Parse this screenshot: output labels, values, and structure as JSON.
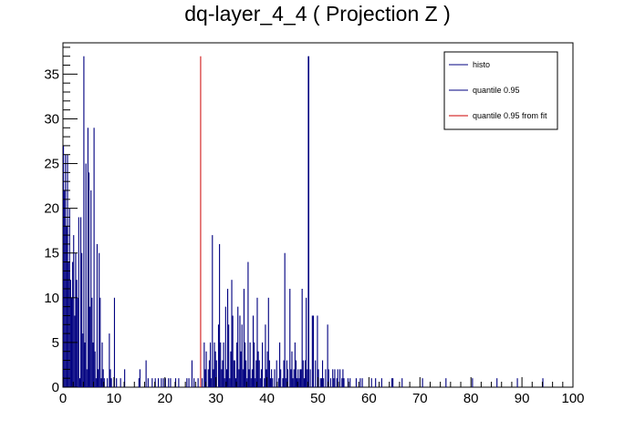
{
  "chart_data": {
    "type": "bar",
    "title": "dq-layer_4_4 ( Projection Z )",
    "xlabel": "",
    "ylabel": "",
    "xlim": [
      0,
      100
    ],
    "ylim": [
      0,
      38.5
    ],
    "bin_width": 0.2,
    "x_ticks": [
      0,
      10,
      20,
      30,
      40,
      50,
      60,
      70,
      80,
      90,
      100
    ],
    "y_ticks": [
      0,
      5,
      10,
      15,
      20,
      25,
      30,
      35
    ],
    "grid": false,
    "legend_position": "top-right",
    "legend": [
      {
        "name": "histo",
        "color": "#000080"
      },
      {
        "name": "quantile 0.95",
        "color": "#000080"
      },
      {
        "name": "quantile 0.95 from fit",
        "color": "#cc0000"
      }
    ],
    "lines": [
      {
        "name": "quantile 0.95",
        "x": 48.1,
        "y": 37,
        "color": "#000080"
      },
      {
        "name": "quantile 0.95 from fit",
        "x": 27.0,
        "y": 37,
        "color": "#cc0000"
      }
    ],
    "series": [
      {
        "name": "histo",
        "color": "#000080",
        "points": [
          [
            0.0,
            27
          ],
          [
            0.2,
            22
          ],
          [
            0.4,
            26
          ],
          [
            0.6,
            18
          ],
          [
            0.8,
            26
          ],
          [
            1.0,
            14
          ],
          [
            1.2,
            20
          ],
          [
            1.4,
            12
          ],
          [
            1.6,
            10
          ],
          [
            1.8,
            14
          ],
          [
            2.0,
            17
          ],
          [
            2.2,
            8
          ],
          [
            2.4,
            15
          ],
          [
            2.6,
            12
          ],
          [
            2.8,
            10
          ],
          [
            3.0,
            19
          ],
          [
            3.2,
            1
          ],
          [
            3.4,
            19
          ],
          [
            3.6,
            15
          ],
          [
            3.8,
            6
          ],
          [
            4.0,
            37
          ],
          [
            4.2,
            5
          ],
          [
            4.4,
            25
          ],
          [
            4.6,
            2
          ],
          [
            4.8,
            29
          ],
          [
            5.0,
            24
          ],
          [
            5.2,
            9
          ],
          [
            5.4,
            22
          ],
          [
            5.6,
            10
          ],
          [
            5.8,
            5
          ],
          [
            6.0,
            29
          ],
          [
            6.2,
            4
          ],
          [
            6.4,
            1
          ],
          [
            6.6,
            16
          ],
          [
            6.8,
            2
          ],
          [
            7.0,
            15
          ],
          [
            7.2,
            10
          ],
          [
            7.4,
            1
          ],
          [
            7.6,
            5
          ],
          [
            7.8,
            2
          ],
          [
            8.0,
            1
          ],
          [
            8.6,
            1
          ],
          [
            9.0,
            6
          ],
          [
            9.2,
            2
          ],
          [
            9.4,
            1
          ],
          [
            10.0,
            10
          ],
          [
            10.4,
            1
          ],
          [
            11.2,
            1
          ],
          [
            12.0,
            2
          ],
          [
            14.8,
            1
          ],
          [
            15.0,
            2
          ],
          [
            16.2,
            3
          ],
          [
            16.6,
            1
          ],
          [
            17.4,
            1
          ],
          [
            18.0,
            1
          ],
          [
            18.6,
            1
          ],
          [
            19.2,
            1
          ],
          [
            19.6,
            1
          ],
          [
            20.0,
            1
          ],
          [
            20.6,
            1
          ],
          [
            21.0,
            1
          ],
          [
            22.0,
            1
          ],
          [
            22.6,
            1
          ],
          [
            24.2,
            1
          ],
          [
            24.6,
            1
          ],
          [
            25.2,
            3
          ],
          [
            25.6,
            1
          ],
          [
            26.4,
            1
          ],
          [
            27.2,
            1
          ],
          [
            27.6,
            5
          ],
          [
            27.8,
            2
          ],
          [
            28.0,
            4
          ],
          [
            28.4,
            2
          ],
          [
            28.6,
            3
          ],
          [
            28.8,
            5
          ],
          [
            29.0,
            1
          ],
          [
            29.2,
            17
          ],
          [
            29.4,
            2
          ],
          [
            29.6,
            5
          ],
          [
            29.8,
            4
          ],
          [
            30.0,
            3
          ],
          [
            30.4,
            7
          ],
          [
            30.6,
            16
          ],
          [
            30.8,
            5
          ],
          [
            31.0,
            2
          ],
          [
            31.2,
            3
          ],
          [
            31.4,
            5
          ],
          [
            31.6,
            1
          ],
          [
            31.8,
            9
          ],
          [
            32.0,
            2
          ],
          [
            32.2,
            11
          ],
          [
            32.4,
            7
          ],
          [
            32.6,
            1
          ],
          [
            32.8,
            4
          ],
          [
            33.0,
            12
          ],
          [
            33.2,
            8
          ],
          [
            33.4,
            3
          ],
          [
            33.6,
            3
          ],
          [
            33.8,
            1
          ],
          [
            34.0,
            5
          ],
          [
            34.2,
            9
          ],
          [
            34.4,
            2
          ],
          [
            34.6,
            8
          ],
          [
            34.8,
            4
          ],
          [
            35.0,
            7
          ],
          [
            35.2,
            2
          ],
          [
            35.4,
            11
          ],
          [
            35.6,
            5
          ],
          [
            35.8,
            3
          ],
          [
            36.0,
            1
          ],
          [
            36.2,
            14
          ],
          [
            36.4,
            2
          ],
          [
            36.6,
            5
          ],
          [
            36.8,
            1
          ],
          [
            37.0,
            2
          ],
          [
            37.2,
            8
          ],
          [
            37.4,
            5
          ],
          [
            37.6,
            1
          ],
          [
            37.8,
            3
          ],
          [
            38.0,
            10
          ],
          [
            38.2,
            4
          ],
          [
            38.4,
            3
          ],
          [
            38.6,
            1
          ],
          [
            38.8,
            2
          ],
          [
            39.0,
            5
          ],
          [
            39.4,
            1
          ],
          [
            39.6,
            7
          ],
          [
            39.8,
            2
          ],
          [
            40.0,
            4
          ],
          [
            40.2,
            10
          ],
          [
            40.4,
            3
          ],
          [
            40.6,
            1
          ],
          [
            40.8,
            2
          ],
          [
            41.0,
            1
          ],
          [
            41.4,
            2
          ],
          [
            41.8,
            3
          ],
          [
            42.2,
            1
          ],
          [
            42.4,
            5
          ],
          [
            42.6,
            2
          ],
          [
            43.0,
            1
          ],
          [
            43.2,
            3
          ],
          [
            43.4,
            15
          ],
          [
            43.6,
            1
          ],
          [
            43.8,
            3
          ],
          [
            44.0,
            2
          ],
          [
            44.4,
            11
          ],
          [
            44.6,
            2
          ],
          [
            44.8,
            4
          ],
          [
            45.0,
            1
          ],
          [
            45.2,
            2
          ],
          [
            45.4,
            5
          ],
          [
            45.6,
            3
          ],
          [
            45.8,
            1
          ],
          [
            46.0,
            2
          ],
          [
            46.2,
            1
          ],
          [
            46.4,
            2
          ],
          [
            46.6,
            2
          ],
          [
            46.8,
            11
          ],
          [
            47.0,
            3
          ],
          [
            47.2,
            1
          ],
          [
            47.4,
            3
          ],
          [
            47.6,
            10
          ],
          [
            47.8,
            2
          ],
          [
            48.1,
            37
          ],
          [
            48.4,
            2
          ],
          [
            48.8,
            8
          ],
          [
            49.0,
            8
          ],
          [
            49.4,
            3
          ],
          [
            49.8,
            8
          ],
          [
            50.0,
            2
          ],
          [
            50.4,
            1
          ],
          [
            50.6,
            1
          ],
          [
            50.8,
            3
          ],
          [
            51.0,
            1
          ],
          [
            51.4,
            2
          ],
          [
            51.8,
            7
          ],
          [
            52.0,
            2
          ],
          [
            52.4,
            1
          ],
          [
            52.8,
            2
          ],
          [
            53.0,
            1
          ],
          [
            53.2,
            2
          ],
          [
            53.6,
            1
          ],
          [
            53.8,
            2
          ],
          [
            54.2,
            2
          ],
          [
            54.6,
            1
          ],
          [
            54.8,
            2
          ],
          [
            55.0,
            1
          ],
          [
            55.8,
            1
          ],
          [
            56.2,
            1
          ],
          [
            57.4,
            1
          ],
          [
            58.2,
            1
          ],
          [
            58.6,
            1
          ],
          [
            60.4,
            1
          ],
          [
            61.2,
            1
          ],
          [
            62.4,
            1
          ],
          [
            64.4,
            1
          ],
          [
            64.6,
            1
          ],
          [
            66.4,
            1
          ],
          [
            70.4,
            1
          ],
          [
            75.0,
            1
          ],
          [
            80.2,
            1
          ],
          [
            85.0,
            1
          ],
          [
            89.0,
            1
          ],
          [
            94.0,
            1
          ]
        ]
      }
    ]
  }
}
